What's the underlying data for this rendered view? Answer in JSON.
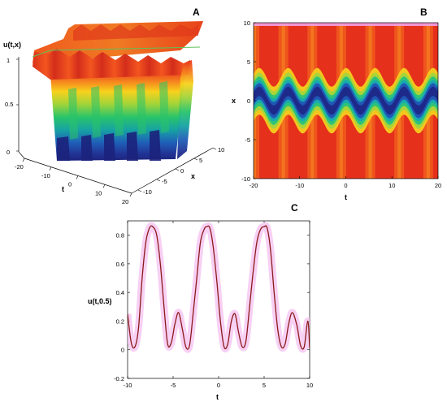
{
  "panels": {
    "a": {
      "letter": "A",
      "zlabel": "u(t,x)",
      "xlabel": "t",
      "ylabel": "x"
    },
    "b": {
      "letter": "B",
      "xlabel": "t",
      "ylabel": "x"
    },
    "c": {
      "letter": "C",
      "xlabel": "t",
      "ylabel": "u(t,0.5)"
    }
  },
  "chart_data": [
    {
      "type": "surface",
      "panel": "A",
      "zlabel": "u(t,x)",
      "xlabel": "t",
      "ylabel": "x",
      "t_range": [
        -20,
        20
      ],
      "x_range": [
        -10,
        10
      ],
      "z_range": [
        0,
        1
      ],
      "t_ticks": [
        "-20",
        "-10",
        "0",
        "10",
        "20"
      ],
      "x_ticks": [
        "-10",
        "-5",
        "0",
        "5",
        "10"
      ],
      "z_ticks": [
        "0",
        "0.5",
        "1"
      ],
      "colormap": "jet"
    },
    {
      "type": "heatmap",
      "panel": "B",
      "xlabel": "t",
      "ylabel": "x",
      "xlim": [
        -20,
        20
      ],
      "ylim": [
        -10,
        10
      ],
      "x_ticks": [
        "-20",
        "-10",
        "0",
        "10",
        "20"
      ],
      "y_ticks": [
        "-10",
        "-5",
        "0",
        "5",
        "10"
      ],
      "colormap": "jet",
      "wave_period": 6.28,
      "wave_amplitude": 1.2
    },
    {
      "type": "line",
      "panel": "C",
      "xlabel": "t",
      "ylabel": "u(t,0.5)",
      "xlim": [
        -10,
        10
      ],
      "ylim": [
        -0.2,
        0.9
      ],
      "x_ticks": [
        "-10",
        "-5",
        "0",
        "5",
        "10"
      ],
      "y_ticks": [
        "-0.2",
        "0",
        "0.2",
        "0.4",
        "0.6",
        "0.8"
      ],
      "line_color": "#8b1a1a",
      "glow_color": "#f4c0f0",
      "x": [
        -10,
        -9.6,
        -9.2,
        -8.8,
        -8.4,
        -8.0,
        -7.6,
        -7.24,
        -6.8,
        -6.4,
        -6.0,
        -5.6,
        -5.2,
        -4.8,
        -4.4,
        -4.0,
        -3.6,
        -3.2,
        -2.8,
        -2.4,
        -2.0,
        -1.6,
        -1.3,
        -0.96,
        -0.6,
        -0.2,
        0.2,
        0.6,
        1.0,
        1.4,
        1.8,
        2.2,
        2.6,
        3.0,
        3.4,
        3.8,
        4.2,
        4.6,
        5.0,
        5.33,
        5.7,
        6.1,
        6.5,
        6.9,
        7.3,
        7.7,
        8.1,
        8.6,
        9.0,
        9.4,
        9.8,
        10
      ],
      "y": [
        0.25,
        0.05,
        0.02,
        0.15,
        0.5,
        0.75,
        0.85,
        0.86,
        0.8,
        0.6,
        0.3,
        0.04,
        0.05,
        0.18,
        0.26,
        0.15,
        0.02,
        0.03,
        0.25,
        0.5,
        0.75,
        0.84,
        0.86,
        0.85,
        0.72,
        0.48,
        0.2,
        0.02,
        0.04,
        0.2,
        0.25,
        0.12,
        0.02,
        0.06,
        0.3,
        0.55,
        0.75,
        0.84,
        0.86,
        0.85,
        0.7,
        0.4,
        0.14,
        0.02,
        0.04,
        0.18,
        0.26,
        0.17,
        0.03,
        0.02,
        0.2,
        0.01
      ]
    }
  ]
}
